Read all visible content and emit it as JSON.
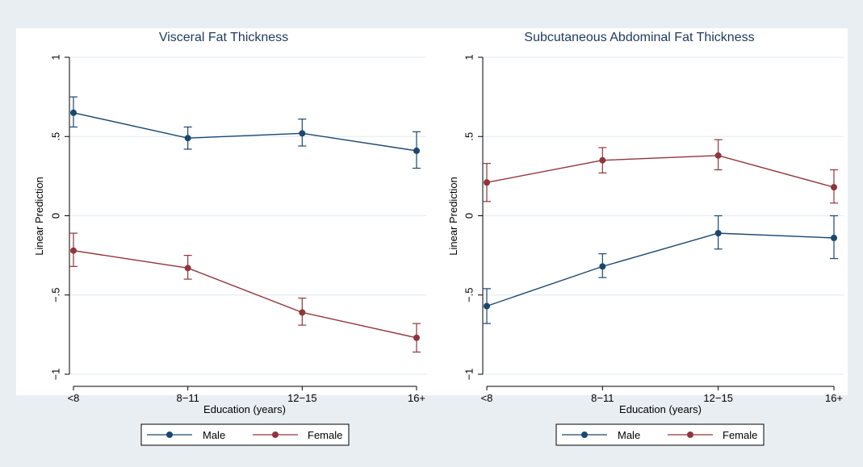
{
  "colors": {
    "figure_bg": "#e9eef2",
    "plot_bg": "#ffffff",
    "grid": "#e6eef2",
    "axis": "#000000",
    "male": "#1a476f",
    "female": "#90353b"
  },
  "chart_data": [
    {
      "type": "line",
      "title": "Visceral Fat Thickness",
      "xlabel": "Education (years)",
      "ylabel": "Linear Prediction",
      "categories": [
        "<8",
        "8−11",
        "12−15",
        "16+"
      ],
      "ylim": [
        -1,
        1
      ],
      "yticks": [
        {
          "value": 1,
          "label": "1"
        },
        {
          "value": 0.5,
          "label": ".5"
        },
        {
          "value": 0,
          "label": "0"
        },
        {
          "value": -0.5,
          "label": "−.5"
        },
        {
          "value": -1,
          "label": "−1"
        }
      ],
      "grid": true,
      "legend_position": "bottom",
      "series": [
        {
          "name": "Male",
          "color": "#1a476f",
          "values": [
            0.65,
            0.49,
            0.52,
            0.41
          ],
          "ci_low": [
            0.56,
            0.42,
            0.44,
            0.3
          ],
          "ci_high": [
            0.75,
            0.56,
            0.61,
            0.53
          ]
        },
        {
          "name": "Female",
          "color": "#90353b",
          "values": [
            -0.22,
            -0.33,
            -0.61,
            -0.77
          ],
          "ci_low": [
            -0.32,
            -0.4,
            -0.69,
            -0.86
          ],
          "ci_high": [
            -0.11,
            -0.25,
            -0.52,
            -0.68
          ]
        }
      ]
    },
    {
      "type": "line",
      "title": "Subcutaneous Abdominal Fat Thickness",
      "xlabel": "Education (years)",
      "ylabel": "Linear Prediction",
      "categories": [
        "<8",
        "8−11",
        "12−15",
        "16+"
      ],
      "ylim": [
        -1,
        1
      ],
      "yticks": [
        {
          "value": 1,
          "label": "1"
        },
        {
          "value": 0.5,
          "label": ".5"
        },
        {
          "value": 0,
          "label": "0"
        },
        {
          "value": -0.5,
          "label": "−.5"
        },
        {
          "value": -1,
          "label": "−1"
        }
      ],
      "grid": true,
      "legend_position": "bottom",
      "series": [
        {
          "name": "Male",
          "color": "#1a476f",
          "values": [
            -0.57,
            -0.32,
            -0.11,
            -0.14
          ],
          "ci_low": [
            -0.68,
            -0.39,
            -0.21,
            -0.27
          ],
          "ci_high": [
            -0.46,
            -0.24,
            0.0,
            0.0
          ]
        },
        {
          "name": "Female",
          "color": "#90353b",
          "values": [
            0.21,
            0.35,
            0.38,
            0.18
          ],
          "ci_low": [
            0.09,
            0.27,
            0.29,
            0.08
          ],
          "ci_high": [
            0.33,
            0.43,
            0.48,
            0.29
          ]
        }
      ]
    }
  ]
}
